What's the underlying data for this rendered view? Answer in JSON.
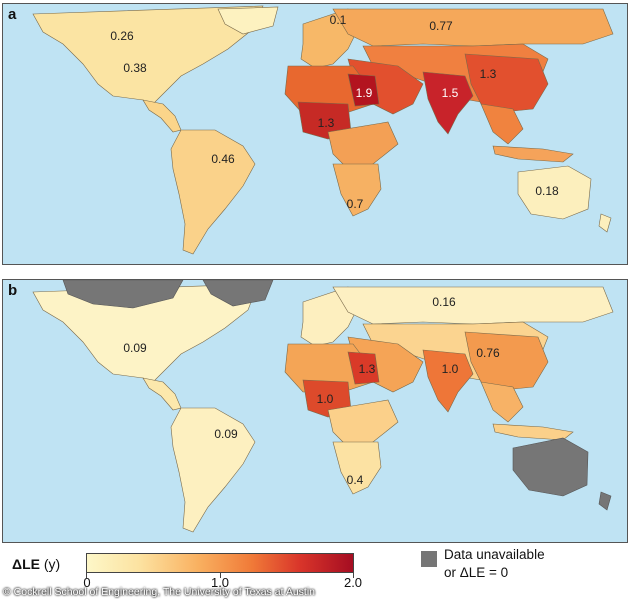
{
  "panels": [
    {
      "letter": "a",
      "labels": [
        {
          "text": "0.1"
        },
        {
          "text": "0.77"
        },
        {
          "text": "0.26"
        },
        {
          "text": "0.38"
        },
        {
          "text": "1.9"
        },
        {
          "text": "1.5"
        },
        {
          "text": "1.3"
        },
        {
          "text": "1.3"
        },
        {
          "text": "0.46"
        },
        {
          "text": "0.7"
        },
        {
          "text": "0.18"
        }
      ]
    },
    {
      "letter": "b",
      "labels": [
        {
          "text": "0.16"
        },
        {
          "text": "0.09"
        },
        {
          "text": "0.76"
        },
        {
          "text": "1.3"
        },
        {
          "text": "1.0"
        },
        {
          "text": "1.0"
        },
        {
          "text": "0.09"
        },
        {
          "text": "0.4"
        }
      ]
    }
  ],
  "legend": {
    "title": "ΔLE",
    "unit": "(y)",
    "ticks": [
      "0",
      "1.0",
      "2.0"
    ],
    "range": [
      0,
      2.0
    ],
    "na_line1": "Data unavailable",
    "na_line2": "or ΔLE = 0"
  },
  "credit": "© Cockrell School of Engineering, The University of Texas at Austin",
  "colors": {
    "ocean": "#bfe3f3",
    "low": "#fdf7c8",
    "mid": "#f9b060",
    "high": "#a50d22",
    "unavailable": "#767676"
  }
}
